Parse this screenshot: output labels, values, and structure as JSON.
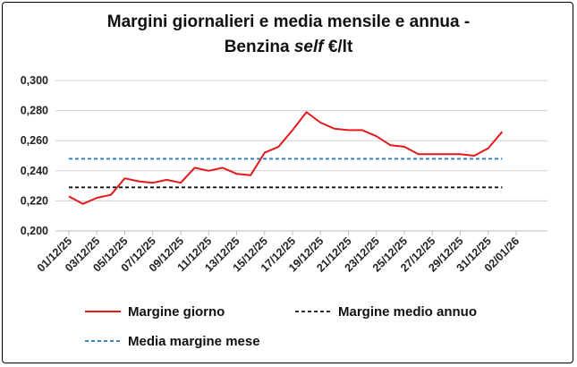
{
  "chart_data": {
    "type": "line",
    "title_line1": "Margini giornalieri e media mensile e annua -",
    "title_line2_prefix": "Benzina ",
    "title_line2_italic": "self",
    "title_line2_suffix": " €/lt",
    "ylim": [
      0.2,
      0.3
    ],
    "y_ticks": [
      "0,300",
      "0,280",
      "0,260",
      "0,240",
      "0,220",
      "0,200"
    ],
    "y_tick_values": [
      0.3,
      0.28,
      0.26,
      0.24,
      0.22,
      0.2
    ],
    "x_tick_labels": [
      "01/12/25",
      "03/12/25",
      "05/12/25",
      "07/12/25",
      "09/12/25",
      "11/12/25",
      "13/12/25",
      "15/12/25",
      "17/12/25",
      "19/12/25",
      "21/12/25",
      "23/12/25",
      "25/12/25",
      "27/12/25",
      "29/12/25",
      "31/12/25",
      "02/01/26"
    ],
    "x_tick_days": [
      0,
      2,
      4,
      6,
      8,
      10,
      12,
      14,
      16,
      18,
      20,
      22,
      24,
      26,
      28,
      30,
      32
    ],
    "x_range_days": [
      0,
      32
    ],
    "grid": "horizontal",
    "legend_position": "bottom",
    "series": [
      {
        "name": "Margine giorno",
        "style": "solid",
        "color": "#e3191c",
        "x_days": [
          0,
          1,
          2,
          3,
          4,
          5,
          6,
          7,
          8,
          9,
          10,
          11,
          12,
          13,
          14,
          15,
          16,
          17,
          18,
          19,
          20,
          21,
          22,
          23,
          24,
          25,
          26,
          27,
          28,
          29,
          30,
          31
        ],
        "values": [
          0.223,
          0.218,
          0.222,
          0.224,
          0.235,
          0.233,
          0.232,
          0.234,
          0.232,
          0.242,
          0.24,
          0.242,
          0.238,
          0.237,
          0.252,
          0.256,
          0.267,
          0.279,
          0.272,
          0.268,
          0.267,
          0.267,
          0.263,
          0.257,
          0.256,
          0.251,
          0.251,
          0.251,
          0.251,
          0.25,
          0.255,
          0.266
        ]
      },
      {
        "name": "Margine medio annuo",
        "style": "dashed",
        "color": "#111111",
        "x_days": [
          0,
          31
        ],
        "values": [
          0.229,
          0.229
        ]
      },
      {
        "name": "Media margine mese",
        "style": "dashed",
        "color": "#1f77b4",
        "x_days": [
          0,
          31
        ],
        "values": [
          0.248,
          0.248
        ]
      }
    ]
  }
}
